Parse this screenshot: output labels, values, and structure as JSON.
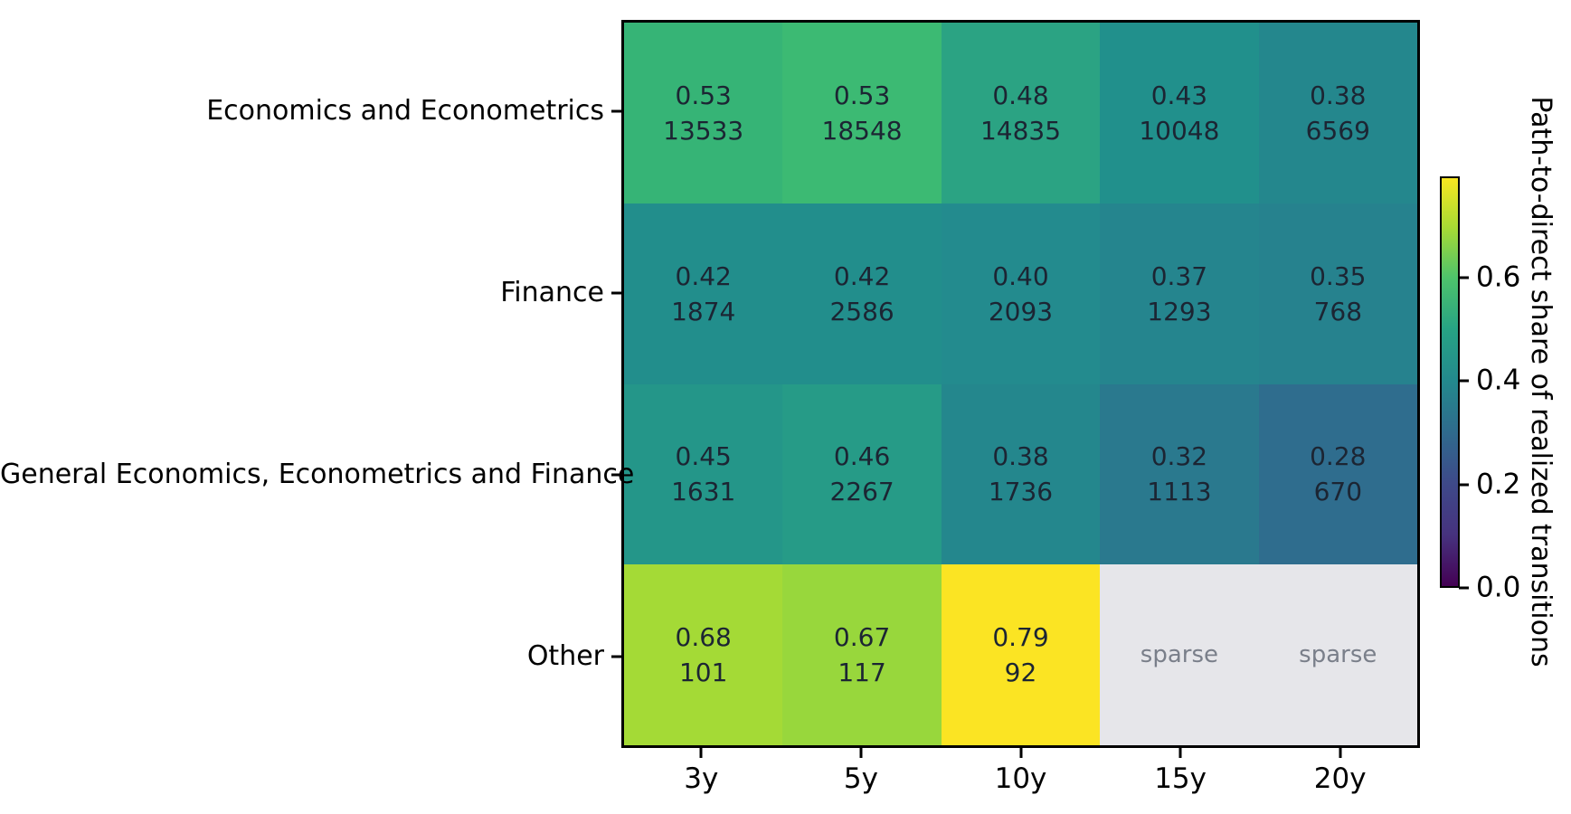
{
  "figure": {
    "background": "#ffffff",
    "border_color": "#000000"
  },
  "chart_data": {
    "type": "heatmap",
    "title": "",
    "rows": [
      "Economics and Econometrics",
      "Finance",
      "General Economics, Econometrics and Finance",
      "Other"
    ],
    "columns": [
      "3y",
      "5y",
      "10y",
      "15y",
      "20y"
    ],
    "cells": [
      [
        {
          "share": "0.53",
          "count": "13533",
          "color": "#36B476"
        },
        {
          "share": "0.53",
          "count": "18548",
          "color": "#3CBA73"
        },
        {
          "share": "0.48",
          "count": "14835",
          "color": "#2BA383"
        },
        {
          "share": "0.43",
          "count": "10048",
          "color": "#21908C"
        },
        {
          "share": "0.38",
          "count": "6569",
          "color": "#24878D"
        }
      ],
      [
        {
          "share": "0.42",
          "count": "1874",
          "color": "#228E8C"
        },
        {
          "share": "0.42",
          "count": "2586",
          "color": "#228E8C"
        },
        {
          "share": "0.40",
          "count": "2093",
          "color": "#238B8E"
        },
        {
          "share": "0.37",
          "count": "1293",
          "color": "#25858E"
        },
        {
          "share": "0.35",
          "count": "768",
          "color": "#26828E"
        }
      ],
      [
        {
          "share": "0.45",
          "count": "1631",
          "color": "#249689"
        },
        {
          "share": "0.46",
          "count": "2267",
          "color": "#269B87"
        },
        {
          "share": "0.38",
          "count": "1736",
          "color": "#24878D"
        },
        {
          "share": "0.32",
          "count": "1113",
          "color": "#2A798E"
        },
        {
          "share": "0.28",
          "count": "670",
          "color": "#2F6D8E"
        }
      ],
      [
        {
          "share": "0.68",
          "count": "101",
          "color": "#A4DA36"
        },
        {
          "share": "0.67",
          "count": "117",
          "color": "#98D73C"
        },
        {
          "share": "0.79",
          "count": "92",
          "color": "#FBE423"
        },
        {
          "sparse": true,
          "color": "#E6E6EA"
        },
        {
          "sparse": true,
          "color": "#E6E6EA"
        }
      ]
    ],
    "sparse_label": "sparse",
    "annotation_colors": {
      "cell_text": "#1C2533",
      "sparse_text": "#7A7F8A",
      "axis_text": "#000000"
    },
    "colorbar": {
      "label": "Path-to-direct share of realized transitions",
      "vmin": 0.0,
      "vmax": 0.795,
      "ticks": [
        {
          "label": "0.0",
          "value": 0.0
        },
        {
          "label": "0.2",
          "value": 0.2
        },
        {
          "label": "0.4",
          "value": 0.4
        },
        {
          "label": "0.6",
          "value": 0.6
        }
      ],
      "gradient_stops": [
        {
          "pos": 0.0,
          "color": "#440154"
        },
        {
          "pos": 0.125,
          "color": "#46327E"
        },
        {
          "pos": 0.25,
          "color": "#3E4989"
        },
        {
          "pos": 0.375,
          "color": "#2F6A8D"
        },
        {
          "pos": 0.503,
          "color": "#23898D"
        },
        {
          "pos": 0.63,
          "color": "#27A384"
        },
        {
          "pos": 0.756,
          "color": "#4EC36B"
        },
        {
          "pos": 0.88,
          "color": "#A8DB34"
        },
        {
          "pos": 1.0,
          "color": "#F8E621"
        }
      ]
    },
    "layout_hints": {
      "legend_position": "right-colorbar",
      "grid": false,
      "x_axis_side": "bottom",
      "y_axis_side": "left"
    }
  }
}
